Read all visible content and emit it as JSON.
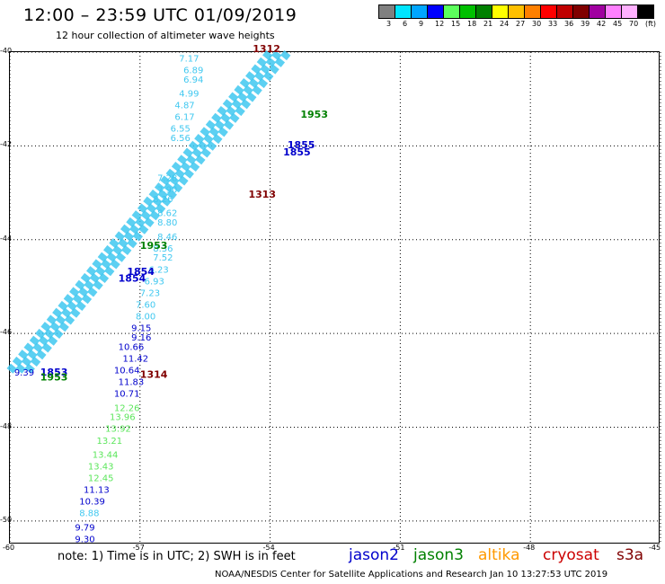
{
  "header": {
    "title": "12:00 – 23:59 UTC 01/09/2019",
    "subtitle": "12 hour collection of altimeter wave heights"
  },
  "colorbar": {
    "colors": [
      "#808080",
      "#00e5ff",
      "#00a6ff",
      "#0000ff",
      "#5cff5c",
      "#00c000",
      "#008000",
      "#ffff00",
      "#ffc000",
      "#ff8000",
      "#ff0000",
      "#c00000",
      "#800000",
      "#a000a0",
      "#ff80ff",
      "#ffb0ff",
      "#000000"
    ],
    "labels": [
      "3",
      "6",
      "9",
      "12",
      "15",
      "18",
      "21",
      "24",
      "27",
      "30",
      "33",
      "36",
      "39",
      "42",
      "45",
      "70",
      "(ft)"
    ]
  },
  "map": {
    "lat_labels": [
      "-40",
      "-42",
      "-44",
      "-46",
      "-48",
      "-50"
    ],
    "lat_values": [
      -40,
      -42,
      -44,
      -46,
      -48,
      -50
    ],
    "lon_labels": [
      "-60",
      "-57",
      "-54",
      "-51",
      "-48",
      "-45"
    ],
    "lon_values": [
      -60,
      -57,
      -54,
      -51,
      -48,
      -45
    ],
    "lat_range": [
      -50.5,
      -40
    ],
    "lon_range": [
      -60,
      -45
    ],
    "light_track": {
      "color": "#40c8f0",
      "start": [
        -60,
        -46.8
      ],
      "end": [
        -54,
        -40
      ]
    },
    "points": [
      {
        "lon": -56.1,
        "lat": -40.2,
        "text": "7.17",
        "color": "#40c8f0"
      },
      {
        "lon": -56.0,
        "lat": -40.45,
        "text": "6.89",
        "color": "#40c8f0"
      },
      {
        "lon": -56.0,
        "lat": -40.65,
        "text": "6.94",
        "color": "#40c8f0"
      },
      {
        "lon": -56.1,
        "lat": -40.95,
        "text": "4.99",
        "color": "#40c8f0"
      },
      {
        "lon": -56.2,
        "lat": -41.2,
        "text": "4.87",
        "color": "#40c8f0"
      },
      {
        "lon": -56.2,
        "lat": -41.45,
        "text": "6.17",
        "color": "#40c8f0"
      },
      {
        "lon": -56.3,
        "lat": -41.7,
        "text": "6.55",
        "color": "#40c8f0"
      },
      {
        "lon": -56.3,
        "lat": -41.9,
        "text": "6.56",
        "color": "#40c8f0"
      },
      {
        "lon": -56.6,
        "lat": -42.75,
        "text": "7.28",
        "color": "#40c8f0"
      },
      {
        "lon": -56.6,
        "lat": -43.0,
        "text": "7.90",
        "color": "#40c8f0"
      },
      {
        "lon": -56.7,
        "lat": -43.2,
        "text": "8.26",
        "color": "#40c8f0"
      },
      {
        "lon": -56.6,
        "lat": -43.5,
        "text": "8.62",
        "color": "#40c8f0"
      },
      {
        "lon": -56.6,
        "lat": -43.7,
        "text": "8.80",
        "color": "#40c8f0"
      },
      {
        "lon": -56.6,
        "lat": -44.0,
        "text": "8.46",
        "color": "#40c8f0"
      },
      {
        "lon": -56.7,
        "lat": -44.25,
        "text": "8.36",
        "color": "#40c8f0"
      },
      {
        "lon": -56.7,
        "lat": -44.45,
        "text": "7.52",
        "color": "#40c8f0"
      },
      {
        "lon": -56.8,
        "lat": -44.7,
        "text": "6.23",
        "color": "#40c8f0"
      },
      {
        "lon": -56.9,
        "lat": -44.95,
        "text": "6.93",
        "color": "#40c8f0"
      },
      {
        "lon": -57.0,
        "lat": -45.2,
        "text": "7.23",
        "color": "#40c8f0"
      },
      {
        "lon": -57.1,
        "lat": -45.45,
        "text": "7.60",
        "color": "#40c8f0"
      },
      {
        "lon": -57.1,
        "lat": -45.7,
        "text": "8.00",
        "color": "#40c8f0"
      },
      {
        "lon": -57.2,
        "lat": -45.95,
        "text": "9.15",
        "color": "#0000cc"
      },
      {
        "lon": -57.2,
        "lat": -46.15,
        "text": "9.16",
        "color": "#0000cc"
      },
      {
        "lon": -57.5,
        "lat": -46.35,
        "text": "10.66",
        "color": "#0000cc"
      },
      {
        "lon": -57.4,
        "lat": -46.6,
        "text": "11.42",
        "color": "#0000cc"
      },
      {
        "lon": -57.6,
        "lat": -46.85,
        "text": "10.64",
        "color": "#0000cc"
      },
      {
        "lon": -57.5,
        "lat": -47.1,
        "text": "11.83",
        "color": "#0000cc"
      },
      {
        "lon": -57.6,
        "lat": -47.35,
        "text": "10.71",
        "color": "#0000cc"
      },
      {
        "lon": -57.6,
        "lat": -47.65,
        "text": "12.26",
        "color": "#5ce65c"
      },
      {
        "lon": -57.7,
        "lat": -47.85,
        "text": "13.96",
        "color": "#5ce65c"
      },
      {
        "lon": -57.8,
        "lat": -48.1,
        "text": "13.92",
        "color": "#5ce65c"
      },
      {
        "lon": -58.0,
        "lat": -48.35,
        "text": "13.21",
        "color": "#5ce65c"
      },
      {
        "lon": -58.1,
        "lat": -48.65,
        "text": "13.44",
        "color": "#5ce65c"
      },
      {
        "lon": -58.2,
        "lat": -48.9,
        "text": "13.43",
        "color": "#5ce65c"
      },
      {
        "lon": -58.2,
        "lat": -49.15,
        "text": "12.45",
        "color": "#5ce65c"
      },
      {
        "lon": -58.3,
        "lat": -49.4,
        "text": "11.13",
        "color": "#0000cc"
      },
      {
        "lon": -58.4,
        "lat": -49.65,
        "text": "10.39",
        "color": "#0000cc"
      },
      {
        "lon": -58.4,
        "lat": -49.9,
        "text": "8.88",
        "color": "#40c8f0"
      },
      {
        "lon": -58.5,
        "lat": -50.2,
        "text": "9.79",
        "color": "#0000cc"
      },
      {
        "lon": -58.5,
        "lat": -50.45,
        "text": "9.30",
        "color": "#0000cc"
      },
      {
        "lon": -59.9,
        "lat": -46.9,
        "text": "9.39",
        "color": "#0000cc"
      }
    ],
    "times": [
      {
        "lon": -54.4,
        "lat": -40.0,
        "text": "1312",
        "color": "#800000"
      },
      {
        "lon": -53.3,
        "lat": -41.4,
        "text": "1953",
        "color": "#008000"
      },
      {
        "lon": -53.6,
        "lat": -42.05,
        "text": "1855",
        "color": "#0000cc"
      },
      {
        "lon": -53.7,
        "lat": -42.2,
        "text": "1855",
        "color": "#0000cc"
      },
      {
        "lon": -54.5,
        "lat": -43.1,
        "text": "1313",
        "color": "#800000"
      },
      {
        "lon": -57.0,
        "lat": -44.2,
        "text": "1953",
        "color": "#008000"
      },
      {
        "lon": -57.3,
        "lat": -44.75,
        "text": "1854",
        "color": "#0000cc"
      },
      {
        "lon": -57.5,
        "lat": -44.9,
        "text": "1854",
        "color": "#0000cc"
      },
      {
        "lon": -59.3,
        "lat": -46.9,
        "text": "1853",
        "color": "#0000cc"
      },
      {
        "lon": -59.3,
        "lat": -47.0,
        "text": "1953",
        "color": "#008000"
      },
      {
        "lon": -57.0,
        "lat": -46.95,
        "text": "1314",
        "color": "#800000"
      }
    ]
  },
  "footer": {
    "note": "note: 1) Time is in UTC; 2) SWH is in feet",
    "legend": [
      {
        "label": "jason2",
        "color": "#0000cc"
      },
      {
        "label": "jason3",
        "color": "#008000"
      },
      {
        "label": "altika",
        "color": "#ff9900"
      },
      {
        "label": "cryosat",
        "color": "#cc0000"
      },
      {
        "label": "s3a",
        "color": "#800000"
      }
    ],
    "credit": "NOAA/NESDIS Center for Satellite Applications and Research    Jan 10 13:27:53 UTC 2019"
  }
}
